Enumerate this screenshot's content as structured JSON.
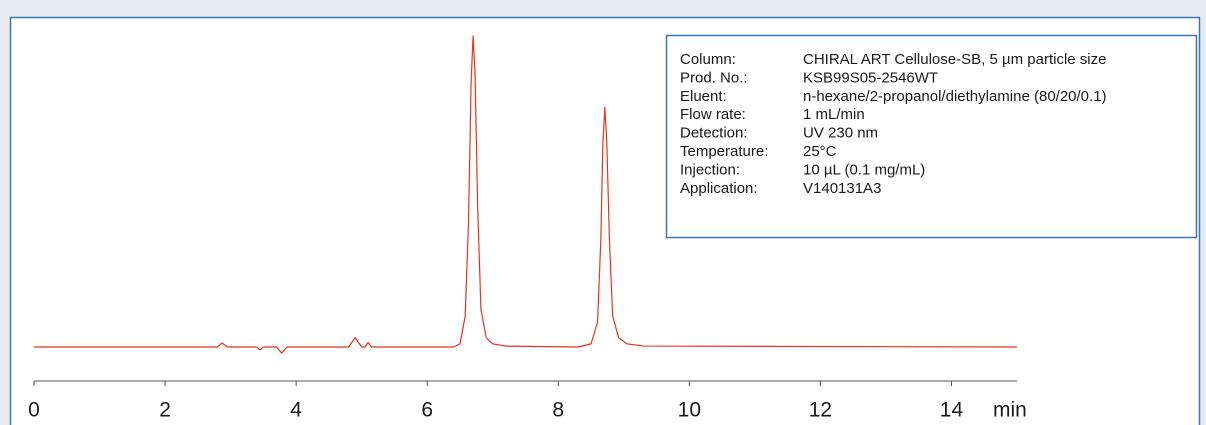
{
  "chart_data": {
    "type": "line",
    "x_label": "min",
    "x": [
      0,
      2.8,
      2.87,
      2.95,
      3.4,
      3.45,
      3.5,
      3.7,
      3.78,
      3.86,
      4.8,
      4.9,
      5.0,
      5.05,
      5.1,
      5.15,
      6.4,
      6.5,
      6.58,
      6.63,
      6.67,
      6.7,
      6.73,
      6.77,
      6.82,
      6.9,
      7.0,
      7.2,
      8.3,
      8.5,
      8.6,
      8.65,
      8.68,
      8.71,
      8.74,
      8.78,
      8.83,
      8.92,
      9.05,
      9.3,
      15
    ],
    "series": [
      {
        "color": "#e8321e",
        "values": [
          0,
          0,
          1.3,
          0,
          0,
          -1,
          0,
          0,
          -2,
          0,
          0,
          3,
          0,
          0,
          1.5,
          0,
          0,
          1,
          10,
          40,
          85,
          100,
          88,
          45,
          12,
          3,
          1,
          0.3,
          0,
          1,
          8,
          35,
          65,
          77,
          66,
          35,
          10,
          3,
          1,
          0.3,
          0
        ]
      }
    ],
    "xlim": [
      0,
      15
    ],
    "xticks": [
      0,
      2,
      4,
      6,
      8,
      10,
      12,
      14
    ],
    "ylim": [
      0,
      100
    ],
    "info_box": [
      {
        "label": "Column:",
        "value": "CHIRAL ART Cellulose-SB, 5 µm particle size"
      },
      {
        "label": "Prod. No.:",
        "value": "KSB99S05-2546WT"
      },
      {
        "label": "Eluent:",
        "value": "n-hexane/2-propanol/diethylamine (80/20/0.1)"
      },
      {
        "label": "Flow rate:",
        "value": "1 mL/min"
      },
      {
        "label": "Detection:",
        "value": "UV 230 nm"
      },
      {
        "label": "Temperature:",
        "value": "25°C"
      },
      {
        "label": "Injection:",
        "value": "10 µL (0.1 mg/mL)"
      },
      {
        "label": "Application:",
        "value": "V140131A3"
      }
    ]
  }
}
